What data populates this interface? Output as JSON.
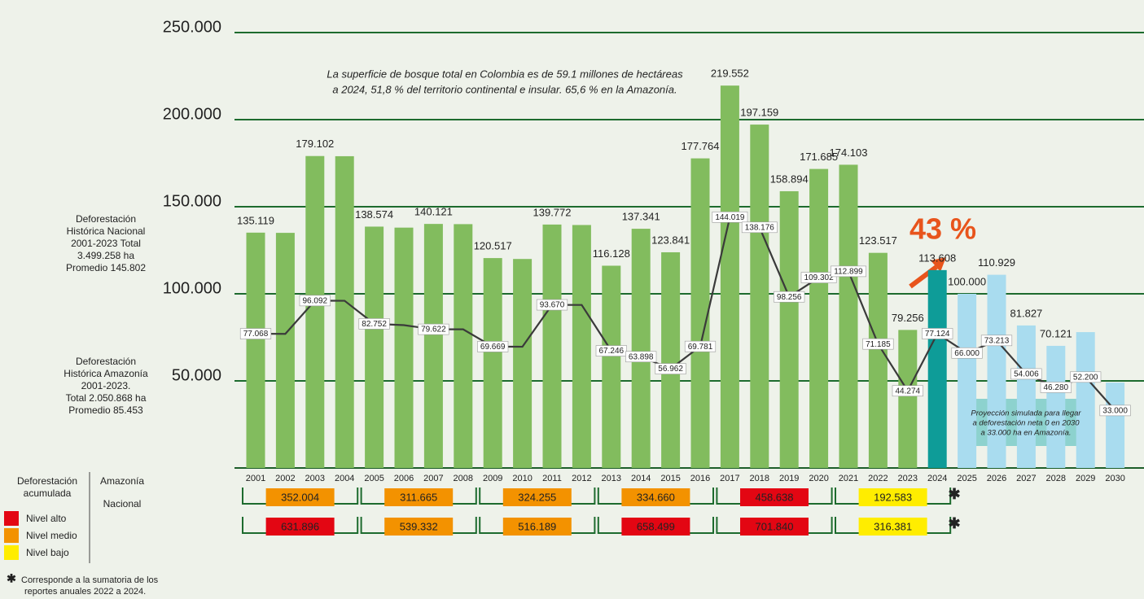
{
  "chart_data": {
    "type": "bar",
    "categories": [
      "2001",
      "2002",
      "2003",
      "2004",
      "2005",
      "2006",
      "2007",
      "2008",
      "2009",
      "2010",
      "2011",
      "2012",
      "2013",
      "2014",
      "2015",
      "2016",
      "2017",
      "2018",
      "2019",
      "2020",
      "2021",
      "2022",
      "2023",
      "2024",
      "2025",
      "2026",
      "2027",
      "2028",
      "2029",
      "2030"
    ],
    "ylim": [
      0,
      250000
    ],
    "yticks": [
      {
        "value": 50000,
        "label": "50.000"
      },
      {
        "value": 100000,
        "label": "100.000"
      },
      {
        "value": 150000,
        "label": "150.000"
      },
      {
        "value": 200000,
        "label": "200.000"
      },
      {
        "value": 250000,
        "label": "250.000"
      }
    ],
    "grid": true,
    "series": [
      {
        "type": "bar",
        "values": [
          135119,
          135000,
          179102,
          179000,
          138574,
          138000,
          140121,
          140000,
          120517,
          120000,
          139772,
          139500,
          116128,
          137341,
          123841,
          177764,
          219552,
          197159,
          158894,
          171685,
          174103,
          123517,
          79256,
          113608,
          100000,
          110929,
          81827,
          70121,
          78000,
          49000
        ],
        "value_labels": [
          "135.119",
          null,
          "179.102",
          null,
          "138.574",
          null,
          "140.121",
          null,
          "120.517",
          null,
          "139.772",
          null,
          "116.128",
          "137.341",
          "123.841",
          "177.764",
          "219.552",
          "197.159",
          "158.894",
          "171.685",
          "174.103",
          "123.517",
          "79.256",
          "113.608",
          "100.000",
          "110.929",
          "81.827",
          "70.121",
          null,
          null
        ],
        "colors": [
          "#82bc5e",
          "#82bc5e",
          "#82bc5e",
          "#82bc5e",
          "#82bc5e",
          "#82bc5e",
          "#82bc5e",
          "#82bc5e",
          "#82bc5e",
          "#82bc5e",
          "#82bc5e",
          "#82bc5e",
          "#82bc5e",
          "#82bc5e",
          "#82bc5e",
          "#82bc5e",
          "#82bc5e",
          "#82bc5e",
          "#82bc5e",
          "#82bc5e",
          "#82bc5e",
          "#82bc5e",
          "#82bc5e",
          "#0e9c98",
          "#a9dcef",
          "#a9dcef",
          "#a9dcef",
          "#a9dcef",
          "#a9dcef",
          "#a9dcef"
        ]
      },
      {
        "type": "line",
        "color": "#3a3a3a",
        "values": [
          77068,
          77000,
          96092,
          96000,
          82752,
          82000,
          79622,
          79600,
          69669,
          69600,
          93670,
          93600,
          67246,
          63898,
          56962,
          69781,
          144019,
          138176,
          98256,
          109302,
          112899,
          71185,
          44274,
          77124,
          66000,
          73213,
          54006,
          46280,
          52200,
          33000
        ],
        "value_labels": [
          "77.068",
          null,
          "96.092",
          null,
          "82.752",
          null,
          "79.622",
          null,
          "69.669",
          null,
          "93.670",
          null,
          "67.246",
          "63.898",
          "56.962",
          "69.781",
          "144.019",
          "138.176",
          "98.256",
          "109.302",
          "112.899",
          "71.185",
          "44.274",
          "77.124",
          "66.000",
          "73.213",
          "54.006",
          "46.280",
          "52.200",
          "33.000"
        ]
      }
    ],
    "note": [
      "La superficie de bosque total en Colombia es de 59.1 millones de hectáreas",
      "a 2024, 51,8 % del territorio continental e insular. 65,6 % en la Amazonía."
    ],
    "annotation": "43 %",
    "projection_note": [
      "Proyección simulada para llegar",
      "a deforestación neta 0 en 2030",
      "a 33.000 ha en Amazonía."
    ]
  },
  "national_summary": [
    "Deforestación",
    "Histórica Nacional",
    "2001-2023 Total",
    "3.499.258 ha",
    "Promedio 145.802"
  ],
  "amazon_summary": [
    "Deforestación",
    "Histórica Amazonía",
    "2001-2023.",
    "Total 2.050.868 ha",
    "Promedio 85.453"
  ],
  "accumulated": {
    "title": [
      "Deforestación",
      "acumulada"
    ],
    "star": "✱",
    "rows": [
      {
        "label": "Amazonía",
        "cells": [
          {
            "text": "352.004",
            "color": "#f39200"
          },
          {
            "text": "311.665",
            "color": "#f39200"
          },
          {
            "text": "324.255",
            "color": "#f39200"
          },
          {
            "text": "334.660",
            "color": "#f39200"
          },
          {
            "text": "458.638",
            "color": "#e30613"
          },
          {
            "text": "192.583",
            "color": "#ffed00"
          }
        ]
      },
      {
        "label": "Nacional",
        "cells": [
          {
            "text": "631.896",
            "color": "#e30613"
          },
          {
            "text": "539.332",
            "color": "#f39200"
          },
          {
            "text": "516.189",
            "color": "#f39200"
          },
          {
            "text": "658.499",
            "color": "#e30613"
          },
          {
            "text": "701.840",
            "color": "#e30613"
          },
          {
            "text": "316.381",
            "color": "#ffed00"
          }
        ]
      }
    ],
    "legend": [
      {
        "label": "Nivel alto",
        "color": "#e30613"
      },
      {
        "label": "Nivel medio",
        "color": "#f39200"
      },
      {
        "label": "Nivel bajo",
        "color": "#ffed00"
      }
    ],
    "footnote": [
      "Corresponde a la sumatoria de los",
      "reportes anuales 2022 a 2024."
    ]
  }
}
